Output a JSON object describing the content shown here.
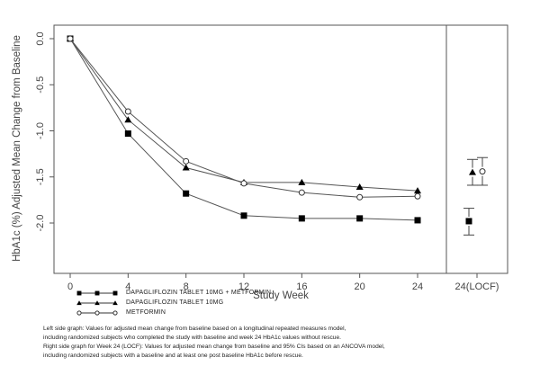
{
  "chart_data": {
    "type": "line",
    "xlabel": "Study Week",
    "ylabel": "HbA1c (%) Adjusted Mean Change from Baseline",
    "x": [
      0,
      4,
      8,
      12,
      16,
      20,
      24
    ],
    "x_tick_labels": [
      "0",
      "4",
      "8",
      "12",
      "16",
      "20",
      "24",
      "24(LOCF)"
    ],
    "y_tick_labels": [
      "0.0",
      "-0.5",
      "-1.0",
      "-1.5",
      "-2.0"
    ],
    "ylim": [
      -2.2,
      0.12
    ],
    "grid": false,
    "legend_position": "bottom",
    "series": [
      {
        "name": "DAPAGLIFLOZIN TABLET 10MG + METFORMIN",
        "marker": "square",
        "values": [
          0,
          -1.03,
          -1.68,
          -1.92,
          -1.95,
          -1.95,
          -1.97
        ],
        "locf": {
          "mean": -1.98,
          "ci": [
            -2.13,
            -1.84
          ]
        }
      },
      {
        "name": "DAPAGLIFLOZIN TABLET 10MG",
        "marker": "triangle",
        "values": [
          0,
          -0.88,
          -1.4,
          -1.56,
          -1.56,
          -1.61,
          -1.65
        ],
        "locf": {
          "mean": -1.45,
          "ci": [
            -1.59,
            -1.31
          ]
        }
      },
      {
        "name": "METFORMIN",
        "marker": "circle",
        "values": [
          0,
          -0.79,
          -1.33,
          -1.57,
          -1.67,
          -1.72,
          -1.71
        ],
        "locf": {
          "mean": -1.44,
          "ci": [
            -1.59,
            -1.29
          ]
        }
      }
    ]
  },
  "notes": [
    "Left side graph: Values for adjusted mean change from baseline based on a longitudinal repeated measures model,",
    "including randomized subjects who completed the study with baseline and week 24 HbA1c values without rescue.",
    "Right side graph for Week 24 (LOCF): Values for adjusted mean change from baseline and 95% CIs based on an ANCOVA model,",
    "including randomized subjects with a baseline and at least one post baseline HbA1c before rescue."
  ]
}
